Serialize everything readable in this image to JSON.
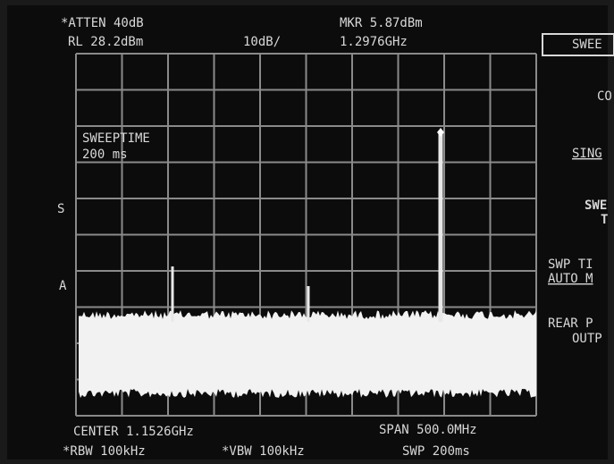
{
  "header": {
    "atten": "*ATTEN 40dB",
    "ref_level": "RL 28.2dBm",
    "scale": "10dB/",
    "marker_level": "MKR 5.87dBm",
    "marker_freq": "1.2976GHz"
  },
  "annotation": {
    "line1": "SWEEPTIME",
    "line2": "200 ms"
  },
  "side_marks": [
    "S",
    "A"
  ],
  "footer": {
    "center": "CENTER 1.1526GHz",
    "span": "SPAN 500.0MHz",
    "rbw": "*RBW 100kHz",
    "vbw": "*VBW 100kHz",
    "sweep": "SWP 200ms"
  },
  "softkeys": [
    "SWEE",
    "CO",
    "SING",
    "SWE",
    "T",
    "SWP TI",
    "AUTO M",
    "REAR P",
    "OUTP"
  ]
}
